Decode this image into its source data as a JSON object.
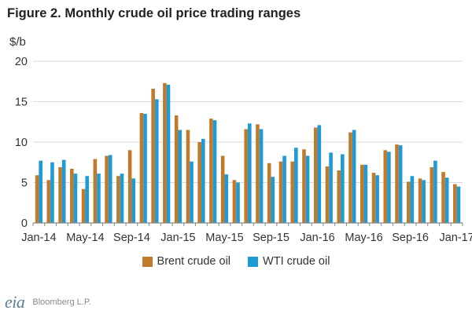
{
  "title": "Figure 2. Monthly crude oil price trading ranges",
  "unit_label": "$/b",
  "logo_text": "eia",
  "source": "Bloomberg L.P.",
  "colors": {
    "brent": "#c07a2c",
    "wti": "#1e9ad6",
    "axis": "#888888",
    "gridline": "#d9d9d9"
  },
  "chart_data": {
    "type": "bar",
    "title": "Figure 2. Monthly crude oil price trading ranges",
    "ylabel": "$/b",
    "ylim": [
      0,
      20
    ],
    "y_ticks": [
      0,
      5,
      10,
      15,
      20
    ],
    "grid": true,
    "legend_position": "bottom",
    "categories": [
      "Jan-14",
      "Feb-14",
      "Mar-14",
      "Apr-14",
      "May-14",
      "Jun-14",
      "Jul-14",
      "Aug-14",
      "Sep-14",
      "Oct-14",
      "Nov-14",
      "Dec-14",
      "Jan-15",
      "Feb-15",
      "Mar-15",
      "Apr-15",
      "May-15",
      "Jun-15",
      "Jul-15",
      "Aug-15",
      "Sep-15",
      "Oct-15",
      "Nov-15",
      "Dec-15",
      "Jan-16",
      "Feb-16",
      "Mar-16",
      "Apr-16",
      "May-16",
      "Jun-16",
      "Jul-16",
      "Aug-16",
      "Sep-16",
      "Oct-16",
      "Nov-16",
      "Dec-16",
      "Jan-17"
    ],
    "x_tick_labels": [
      "Jan-14",
      "May-14",
      "Sep-14",
      "Jan-15",
      "May-15",
      "Sep-15",
      "Jan-16",
      "May-16",
      "Sep-16",
      "Jan-17"
    ],
    "series": [
      {
        "name": "Brent crude oil",
        "values": [
          5.9,
          5.3,
          6.9,
          6.7,
          4.2,
          7.9,
          8.3,
          5.8,
          9.0,
          13.6,
          16.6,
          17.3,
          13.3,
          11.5,
          10.0,
          12.9,
          8.3,
          5.3,
          11.6,
          12.2,
          7.4,
          7.6,
          7.6,
          9.1,
          11.8,
          7.0,
          6.5,
          11.2,
          7.2,
          6.2,
          9.0,
          9.7,
          5.1,
          5.5,
          6.9,
          6.3,
          4.8
        ]
      },
      {
        "name": "WTI crude oil",
        "values": [
          7.7,
          7.5,
          7.8,
          6.1,
          5.8,
          6.1,
          8.4,
          6.1,
          5.5,
          13.5,
          15.3,
          17.1,
          11.5,
          7.6,
          10.4,
          12.7,
          6.0,
          5.0,
          12.3,
          11.6,
          5.7,
          8.3,
          9.3,
          8.3,
          12.1,
          8.7,
          8.5,
          11.5,
          7.2,
          5.9,
          8.8,
          9.6,
          5.8,
          5.3,
          7.7,
          5.6,
          4.5
        ]
      }
    ]
  }
}
